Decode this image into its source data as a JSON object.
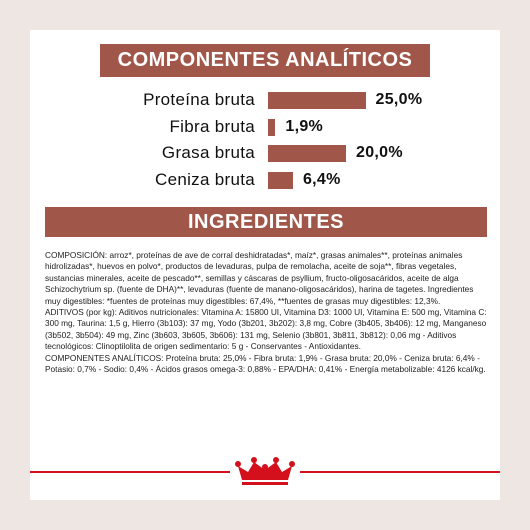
{
  "chart_data": {
    "type": "bar",
    "title": "COMPONENTES ANALÍTICOS",
    "categories": [
      "Proteína bruta",
      "Fibra bruta",
      "Grasa bruta",
      "Ceniza bruta"
    ],
    "values": [
      25.0,
      1.9,
      20.0,
      6.4
    ],
    "value_labels": [
      "25,0%",
      "1,9%",
      "20,0%",
      "6,4%"
    ],
    "color": "#a0574a"
  },
  "ingredients": {
    "title": "INGREDIENTES",
    "paragraphs": [
      "COMPOSICIÓN: arroz*, proteínas de ave de corral deshidratadas*, maíz*, grasas animales**, proteínas animales hidrolizadas*, huevos en polvo*, productos de levaduras, pulpa de remolacha, aceite de soja**, fibras vegetales, sustancias minerales, aceite de pescado**, semillas y cáscaras de psyllium, fructo-oligosacáridos, aceite de alga Schizochytrium sp. (fuente de DHA)**, levaduras (fuente de manano-oligosacáridos), harina de tagetes. Ingredientes muy digestibles: *fuentes de proteínas muy digestibles: 67,4%, **fuentes de grasas muy digestibles: 12,3%.",
      "ADITIVOS (por kg): Aditivos nutricionales: Vitamina A: 15800 UI, Vitamina D3: 1000 UI, Vitamina E: 500 mg, Vitamina C: 300 mg, Taurina: 1,5 g, Hierro (3b103): 37 mg, Yodo (3b201, 3b202): 3,8 mg, Cobre (3b405, 3b406): 12 mg, Manganeso (3b502, 3b504): 49 mg, Zinc (3b603, 3b605, 3b606): 131 mg, Selenio (3b801, 3b811, 3b812): 0,06 mg - Aditivos tecnológicos: Clinoptilolita de origen sedimentario: 5 g - Conservantes - Antioxidantes.",
      "COMPONENTES ANALÍTICOS: Proteína bruta: 25,0% - Fibra bruta: 1,9% - Grasa bruta: 20,0% - Ceniza bruta: 6,4% - Potasio: 0,7% - Sodio: 0,4% - Ácidos grasos omega-3: 0,88% - EPA/DHA: 0,41% - Energía metabolizable: 4126 kcal/kg."
    ]
  }
}
